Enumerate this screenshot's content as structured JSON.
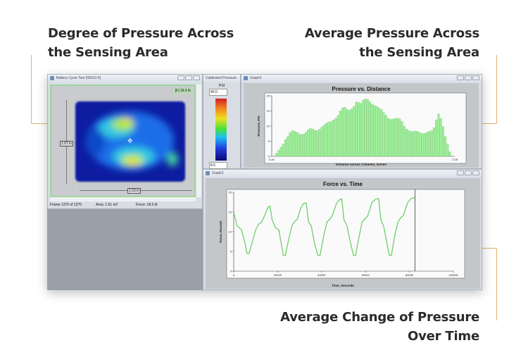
{
  "headings": {
    "top_left": [
      "Degree of Pressure Across",
      "the Sensing Area"
    ],
    "top_right": [
      "Average Pressure Across",
      "the Sensing Area"
    ],
    "bottom_right": [
      "Average Change of Pressure",
      "Over Time"
    ]
  },
  "colors": {
    "accent_line": "#e0b070",
    "bar_fill": "#9ef09a",
    "line": "#6fcf6a"
  },
  "pressure_map_window": {
    "title": "Battery Cycle Test (00013-9)",
    "force_badge": "[F] 18.5 lb",
    "height_label": "1.07 in",
    "width_label": "1.53 in",
    "status": {
      "frame": "Frame 1375 of 1375",
      "area": "Area: 1.61 in2",
      "force": "Force: 18.5 lb"
    }
  },
  "colorbar_window": {
    "title": "Calibrated Pressure",
    "unit": "PSI",
    "max_value": "40.0",
    "min_value": "8.5"
  },
  "graph2_window": {
    "title": "Graph2"
  },
  "graph1_window": {
    "title": "Graph1"
  },
  "chart_data": [
    {
      "type": "bar",
      "title": "Pressure vs. Distance",
      "xlabel": "Distance across Columns, inches",
      "ylabel": "Pressure, PSI",
      "xlim": [
        0.4,
        2.08
      ],
      "ylim": [
        0,
        20
      ],
      "yticks": [
        0,
        5,
        10,
        15,
        20
      ],
      "xtick_labels": [
        "0.40",
        "2.08"
      ],
      "values": [
        1,
        2,
        3,
        4,
        5.5,
        6.5,
        7.8,
        8.5,
        8.3,
        8,
        7.5,
        7.2,
        7.4,
        8,
        8.8,
        9.3,
        9,
        8.6,
        8.5,
        9,
        9.7,
        10.4,
        11,
        11.3,
        11.5,
        12,
        12.5,
        13.5,
        15,
        16,
        16.2,
        15.5,
        15.2,
        15.7,
        16.5,
        18,
        17.8,
        17.5,
        18.5,
        19,
        18.8,
        18,
        17.2,
        16.8,
        16.5,
        16,
        15.5,
        14.5,
        13.5,
        12.5,
        12.2,
        12.3,
        12.5,
        12.6,
        12.4,
        11.5,
        10,
        9,
        8.5,
        8.2,
        8.2,
        8.4,
        8.1,
        7.8,
        7.5,
        7.6,
        8,
        8.2,
        8.5,
        9.5,
        12,
        14,
        12.5,
        9.8,
        6.5,
        4,
        1.5
      ]
    },
    {
      "type": "line",
      "title": "Force vs. Time",
      "xlabel": "Time, Seconds",
      "ylabel": "Force, Pounds",
      "xlim": [
        0,
        100000
      ],
      "ylim": [
        0,
        20
      ],
      "xticks": [
        0,
        20000,
        40000,
        60000,
        80000,
        100000
      ],
      "yticks": [
        0,
        5,
        10,
        15,
        20
      ],
      "cursor_x": 82500,
      "x": [
        0,
        1500,
        3500,
        5200,
        6000,
        7000,
        8500,
        10000,
        11500,
        12500,
        14000,
        15500,
        16500,
        17500,
        19000,
        20500,
        21800,
        22500,
        23500,
        25000,
        26500,
        27500,
        29000,
        30500,
        31800,
        33000,
        34000,
        35300,
        36800,
        38300,
        39300,
        41000,
        42500,
        43800,
        45000,
        46800,
        48300,
        49200,
        50200,
        51500,
        53000,
        54500,
        55500,
        57000,
        58500,
        59800,
        61000,
        63000,
        64800,
        66000,
        67000,
        68200,
        69600,
        70800,
        71800,
        73300,
        74800,
        76000,
        77300,
        79200,
        81000,
        82500
      ],
      "y": [
        15,
        11.5,
        10.5,
        7,
        4.5,
        4.5,
        7.5,
        10.5,
        12,
        12.3,
        14,
        16.2,
        16.5,
        13,
        11,
        10.5,
        6.5,
        4,
        4,
        8,
        11.5,
        12.5,
        13.2,
        16,
        17.2,
        17.3,
        12.5,
        11.5,
        7,
        4,
        4,
        9,
        12.5,
        13.2,
        14.2,
        17.2,
        18.2,
        18.3,
        13,
        11.6,
        7.5,
        4,
        4,
        8.5,
        12.5,
        13.3,
        14,
        17.5,
        18.3,
        18.4,
        13,
        11.5,
        7.5,
        4,
        4,
        9,
        12.5,
        13.5,
        14.2,
        17.4,
        18.5,
        18.6
      ]
    }
  ]
}
